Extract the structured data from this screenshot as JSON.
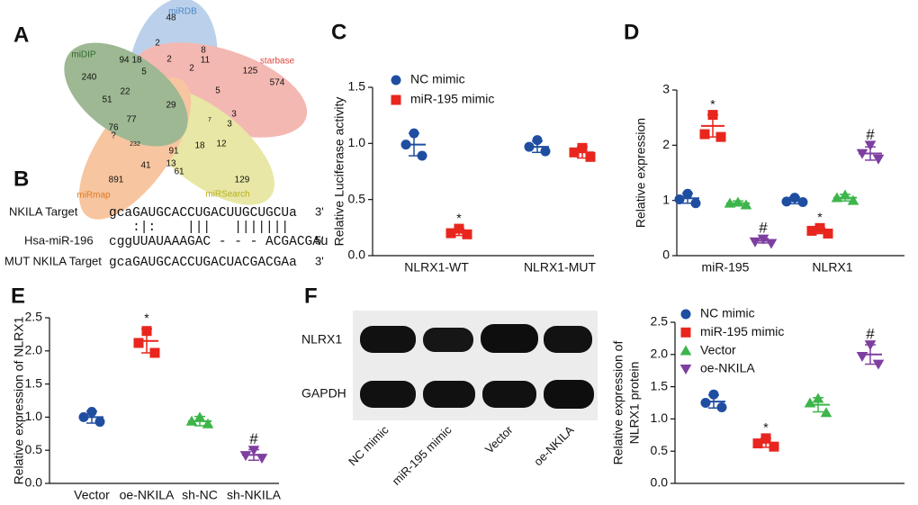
{
  "panel_labels": [
    "A",
    "B",
    "C",
    "D",
    "E",
    "F"
  ],
  "venn": {
    "sets": [
      "miRDB",
      "starbase",
      "miRSearch",
      "miRmap",
      "miDIP"
    ],
    "regions": [
      48,
      2,
      8,
      94,
      18,
      2,
      11,
      240,
      125,
      574,
      5,
      2,
      22,
      5,
      51,
      29,
      7,
      3,
      3,
      77,
      76,
      "?",
      232,
      91,
      18,
      12,
      41,
      13,
      61,
      891,
      129
    ]
  },
  "alignment": {
    "rows": [
      {
        "label": "NKILA Target",
        "sequence": "gcaGAUGCACCUGACUUGCUGCUa",
        "end": "3'"
      },
      {
        "label": "Hsa-miR-196",
        "sequence": "cggUUAUAAAGAC - - - ACGACGAu",
        "end": "5'"
      },
      {
        "label": "MUT NKILA Target",
        "sequence": "gcaGAUGCACCUGACUACGACGAa",
        "end": "3'"
      }
    ],
    "pairing": "   :|:    |||   |||||||"
  },
  "blot": {
    "rows": [
      "NLRX1",
      "GAPDH"
    ],
    "lanes": [
      "NC mimic",
      "miR-195 mimic",
      "Vector",
      "oe-NKILA"
    ]
  },
  "chart_data": [
    {
      "type": "dotplot",
      "ylabel": [
        "Relative Luciferase activity"
      ],
      "categories": [
        "NLRX1-WT",
        "NLRX1-MUT"
      ],
      "legend": "upper left",
      "ylim": [
        0,
        1.5
      ],
      "yticks": [
        {
          "value": 0,
          "label": "0.0"
        },
        {
          "value": 0.5,
          "label": "0.5"
        },
        {
          "value": 1,
          "label": "1.0"
        },
        {
          "value": 1.5,
          "label": "1.5"
        }
      ],
      "series": [
        {
          "name": "NC mimic",
          "color": "#1f4ea1",
          "marker": "circle",
          "values": [
            0.99,
            0.97
          ],
          "errors": [
            0.1,
            0.05
          ],
          "points": [
            [
              1.09,
              0.99,
              0.89
            ],
            [
              1.03,
              0.97,
              0.93
            ]
          ],
          "marks": [
            null,
            null
          ]
        },
        {
          "name": "miR-195 mimic",
          "color": "#e8261e",
          "marker": "square",
          "values": [
            0.21,
            0.92
          ],
          "errors": [
            0.03,
            0.05
          ],
          "points": [
            [
              0.24,
              0.2,
              0.19
            ],
            [
              0.96,
              0.92,
              0.88
            ]
          ],
          "marks": [
            "*",
            null
          ]
        }
      ]
    },
    {
      "type": "dotplot",
      "ylabel": [
        "Relative expression"
      ],
      "categories": [
        "miR-195",
        "NLRX1"
      ],
      "ylim": [
        0,
        3
      ],
      "yticks": [
        0,
        1,
        2,
        3
      ],
      "series": [
        {
          "color": "#1f4ea1",
          "marker": "circle",
          "values": [
            1.04,
            1.0
          ],
          "errors": [
            0.09,
            0.06
          ],
          "points": [
            [
              1.12,
              1.02,
              0.95
            ],
            [
              1.05,
              0.98,
              0.97
            ]
          ],
          "marks": [
            null,
            null
          ]
        },
        {
          "color": "#e8261e",
          "marker": "square",
          "values": [
            2.35,
            0.45
          ],
          "errors": [
            0.2,
            0.05
          ],
          "points": [
            [
              2.55,
              2.2,
              2.15
            ],
            [
              0.5,
              0.45,
              0.4
            ]
          ],
          "marks": [
            "*",
            "*"
          ]
        },
        {
          "color": "#3db54a",
          "marker": "triangle",
          "values": [
            0.95,
            1.05
          ],
          "errors": [
            0.04,
            0.06
          ],
          "points": [
            [
              0.97,
              0.95,
              0.92
            ],
            [
              1.1,
              1.05,
              1.0
            ]
          ],
          "marks": [
            null,
            null
          ]
        },
        {
          "color": "#7e3fa0",
          "marker": "triangle-down",
          "values": [
            0.27,
            1.85
          ],
          "errors": [
            0.04,
            0.12
          ],
          "points": [
            [
              0.3,
              0.25,
              0.22
            ],
            [
              2.0,
              1.85,
              1.75
            ]
          ],
          "marks": [
            "#",
            "#"
          ]
        }
      ]
    },
    {
      "type": "dotplot",
      "ylabel": [
        "Relative expression of NLRX1"
      ],
      "categories": [
        "Vector",
        "oe-NKILA",
        "sh-NC",
        "sh-NKILA"
      ],
      "ylim": [
        0,
        2.5
      ],
      "yticks": [
        {
          "value": 0,
          "label": "0.0"
        },
        {
          "value": 0.5,
          "label": "0.5"
        },
        {
          "value": 1,
          "label": "1.0"
        },
        {
          "value": 1.5,
          "label": "1.5"
        },
        {
          "value": 2,
          "label": "2.0"
        },
        {
          "value": 2.5,
          "label": "2.5"
        }
      ],
      "colors": [
        "#1f4ea1",
        "#e8261e",
        "#3db54a",
        "#7e3fa0"
      ],
      "markers": [
        "circle",
        "square",
        "triangle",
        "triangle-down"
      ],
      "values": [
        1.0,
        2.15,
        0.94,
        0.43
      ],
      "errors": [
        0.09,
        0.18,
        0.07,
        0.08
      ],
      "points": [
        [
          1.08,
          1.0,
          0.93
        ],
        [
          2.3,
          2.12,
          1.97
        ],
        [
          1.0,
          0.94,
          0.9
        ],
        [
          0.5,
          0.42,
          0.38
        ]
      ],
      "marks": [
        null,
        "*",
        null,
        "#"
      ]
    },
    {
      "type": "dotplot",
      "ylabel": [
        "Relative expression of",
        "NLRX1 protein"
      ],
      "categories": [
        null
      ],
      "legend": "upper right",
      "ylim": [
        0,
        2.5
      ],
      "yticks": [
        {
          "value": 0,
          "label": "0.0"
        },
        {
          "value": 0.5,
          "label": "0.5"
        },
        {
          "value": 1,
          "label": "1.0"
        },
        {
          "value": 1.5,
          "label": "1.5"
        },
        {
          "value": 2,
          "label": "2.0"
        },
        {
          "value": 2.5,
          "label": "2.5"
        }
      ],
      "series": [
        {
          "name": "NC mimic",
          "color": "#1f4ea1",
          "marker": "circle",
          "values": [
            1.27
          ],
          "errors": [
            0.1
          ],
          "points": [
            [
              1.38,
              1.25,
              1.18
            ]
          ],
          "marks": [
            null
          ]
        },
        {
          "name": "miR-195 mimic",
          "color": "#e8261e",
          "marker": "square",
          "values": [
            0.63
          ],
          "errors": [
            0.07
          ],
          "points": [
            [
              0.7,
              0.62,
              0.57
            ]
          ],
          "marks": [
            "*"
          ]
        },
        {
          "name": "Vector",
          "color": "#3db54a",
          "marker": "triangle",
          "values": [
            1.22
          ],
          "errors": [
            0.11
          ],
          "points": [
            [
              1.32,
              1.25,
              1.1
            ]
          ],
          "marks": [
            null
          ]
        },
        {
          "name": "oe-NKILA",
          "color": "#7e3fa0",
          "marker": "triangle-down",
          "values": [
            2.0
          ],
          "errors": [
            0.15
          ],
          "points": [
            [
              2.15,
              1.97,
              1.85
            ]
          ],
          "marks": [
            "#"
          ]
        }
      ]
    }
  ]
}
